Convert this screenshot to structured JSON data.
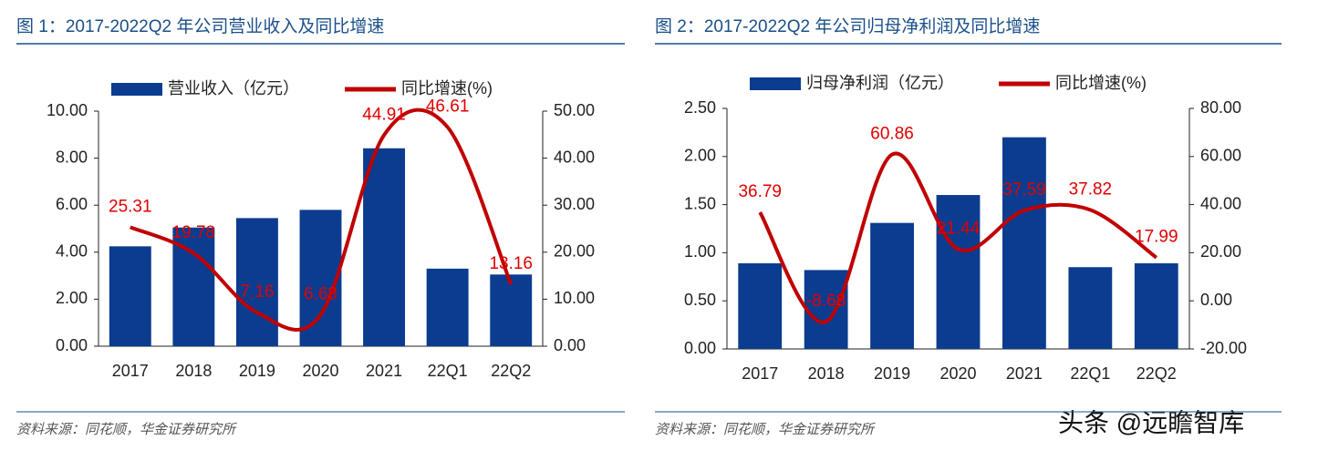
{
  "chart_data": [
    {
      "type": "bar-line",
      "title": "图 1：2017-2022Q2 年公司营业收入及同比增速",
      "categories": [
        "2017",
        "2018",
        "2019",
        "2020",
        "2021",
        "22Q1",
        "22Q2"
      ],
      "series": [
        {
          "name": "营业收入（亿元）",
          "color": "#0b3c8f",
          "values": [
            4.25,
            5.05,
            5.45,
            5.8,
            8.42,
            3.3,
            3.05
          ]
        },
        {
          "name": "同比增速(%)",
          "color": "#c00000",
          "axis": "y2",
          "values": [
            25.31,
            19.78,
            7.16,
            6.68,
            44.91,
            46.61,
            13.16
          ]
        }
      ],
      "ylim": [
        0,
        10
      ],
      "yticks": [
        {
          "value": 0,
          "label": "0.00"
        },
        {
          "value": 2,
          "label": "2.00"
        },
        {
          "value": 4,
          "label": "4.00"
        },
        {
          "value": 6,
          "label": "6.00"
        },
        {
          "value": 8,
          "label": "8.00"
        },
        {
          "value": 10,
          "label": "10.00"
        }
      ],
      "y2lim": [
        0,
        50
      ],
      "y2ticks": [
        {
          "value": 0,
          "label": "0.00"
        },
        {
          "value": 10,
          "label": "10.00"
        },
        {
          "value": 20,
          "label": "20.00"
        },
        {
          "value": 30,
          "label": "30.00"
        },
        {
          "value": 40,
          "label": "40.00"
        },
        {
          "value": 50,
          "label": "50.00"
        }
      ],
      "source": "资料来源：同花顺，华金证券研究所"
    },
    {
      "type": "bar-line",
      "title": "图 2：2017-2022Q2 年公司归母净利润及同比增速",
      "categories": [
        "2017",
        "2018",
        "2019",
        "2020",
        "2021",
        "22Q1",
        "22Q2"
      ],
      "series": [
        {
          "name": "归母净利润（亿元）",
          "color": "#0b3c8f",
          "values": [
            0.89,
            0.82,
            1.31,
            1.6,
            2.2,
            0.85,
            0.89
          ]
        },
        {
          "name": "同比增速(%)",
          "color": "#c00000",
          "axis": "y2",
          "values": [
            36.79,
            -8.68,
            60.86,
            21.44,
            37.59,
            37.82,
            17.99
          ]
        }
      ],
      "ylim": [
        0,
        2.5
      ],
      "yticks": [
        {
          "value": 0,
          "label": "0.00"
        },
        {
          "value": 0.5,
          "label": "0.50"
        },
        {
          "value": 1,
          "label": "1.00"
        },
        {
          "value": 1.5,
          "label": "1.50"
        },
        {
          "value": 2,
          "label": "2.00"
        },
        {
          "value": 2.5,
          "label": "2.50"
        }
      ],
      "y2lim": [
        -20,
        80
      ],
      "y2ticks": [
        {
          "value": -20,
          "label": "-20.00"
        },
        {
          "value": 0,
          "label": "0.00"
        },
        {
          "value": 20,
          "label": "20.00"
        },
        {
          "value": 40,
          "label": "40.00"
        },
        {
          "value": 60,
          "label": "60.00"
        },
        {
          "value": 80,
          "label": "80.00"
        }
      ],
      "source": "资料来源：同花顺，华金证券研究所"
    }
  ],
  "watermark": "头条 @远瞻智库"
}
